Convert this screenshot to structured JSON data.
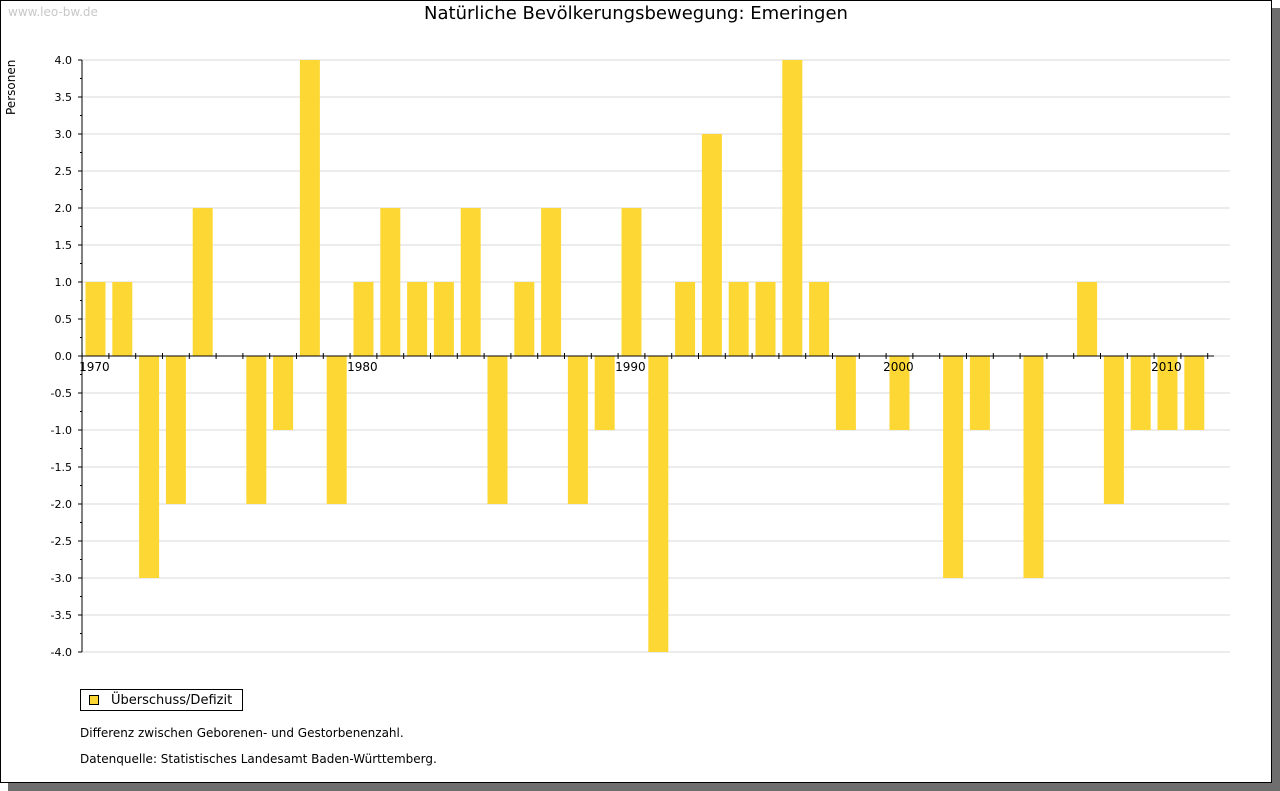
{
  "watermark": "www.leo-bw.de",
  "chart_data": {
    "type": "bar",
    "title": "Natürliche Bevölkerungsbewegung: Emeringen",
    "ylabel": "Personen",
    "xlabel": "",
    "ylim": [
      -4.0,
      4.0
    ],
    "y_ticks": [
      "4.0",
      "3.5",
      "3.0",
      "2.5",
      "2.0",
      "1.5",
      "1.0",
      "0.5",
      "0.0",
      "-0.5",
      "-1.0",
      "-1.5",
      "-2.0",
      "-2.5",
      "-3.0",
      "-3.5",
      "-4.0"
    ],
    "x_tick_labels": [
      "1970",
      "1980",
      "1990",
      "2000",
      "2010"
    ],
    "grid": true,
    "legend_position": "bottom-left",
    "categories": [
      1970,
      1971,
      1972,
      1973,
      1974,
      1975,
      1976,
      1977,
      1978,
      1979,
      1980,
      1981,
      1982,
      1983,
      1984,
      1985,
      1986,
      1987,
      1988,
      1989,
      1990,
      1991,
      1992,
      1993,
      1994,
      1995,
      1996,
      1997,
      1998,
      1999,
      2000,
      2001,
      2002,
      2003,
      2004,
      2005,
      2006,
      2007,
      2008,
      2009,
      2010,
      2011
    ],
    "series": [
      {
        "name": "Überschuss/Defizit",
        "color": "#fdd835",
        "values": [
          1,
          1,
          -3,
          -2,
          2,
          0,
          -2,
          -1,
          4,
          -2,
          1,
          2,
          1,
          1,
          2,
          -2,
          1,
          2,
          -2,
          -1,
          2,
          -4,
          1,
          3,
          1,
          1,
          4,
          1,
          -1,
          0,
          -1,
          0,
          -3,
          -1,
          0,
          -3,
          0,
          1,
          -2,
          -1,
          -1,
          -1
        ]
      }
    ]
  },
  "notes": {
    "description": "Differenz zwischen Geborenen- und Gestorbenenzahl.",
    "source": "Datenquelle: Statistisches Landesamt Baden-Württemberg."
  }
}
